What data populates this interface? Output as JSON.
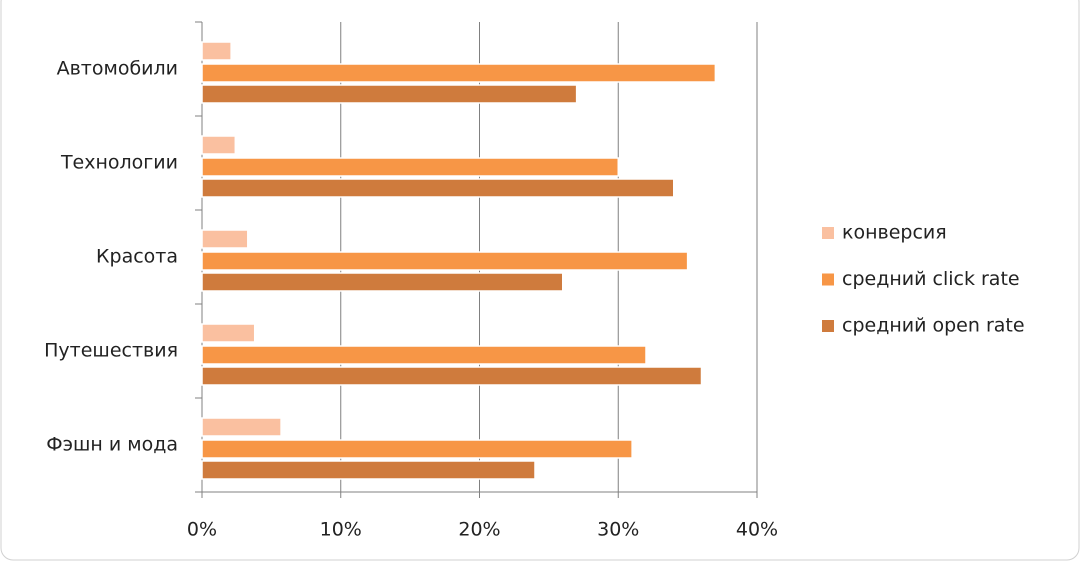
{
  "chart_data": {
    "type": "hbar",
    "categories": [
      "Автомобили",
      "Технологии",
      "Красота",
      "Путешествия",
      "Фэшн и мода"
    ],
    "series": [
      {
        "name": "конверсия",
        "color": "#fac0a0",
        "values": [
          2.1,
          2.4,
          3.3,
          3.8,
          5.7
        ]
      },
      {
        "name": "средний click rate",
        "color": "#f79646",
        "values": [
          37,
          30,
          35,
          32,
          31
        ]
      },
      {
        "name": "средний open rate",
        "color": "#cf7b3d",
        "values": [
          27,
          34,
          26,
          36,
          24
        ]
      }
    ],
    "xlim": [
      0,
      40
    ],
    "xticks": [
      {
        "value": 0,
        "label": "0%"
      },
      {
        "value": 10,
        "label": "10%"
      },
      {
        "value": 20,
        "label": "20%"
      },
      {
        "value": 30,
        "label": "30%"
      },
      {
        "value": 40,
        "label": "40%"
      }
    ],
    "grid": true,
    "legend": "right"
  }
}
